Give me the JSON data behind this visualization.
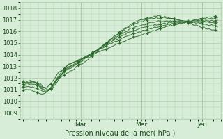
{
  "bg_color": "#d8edd8",
  "grid_color": "#aaccaa",
  "line_color": "#2d6a2d",
  "marker_color": "#2d6a2d",
  "xlabel": "Pression niveau de la mer( hPa )",
  "ylim": [
    1008.5,
    1018.5
  ],
  "yticks": [
    1009,
    1010,
    1011,
    1012,
    1013,
    1014,
    1015,
    1016,
    1017,
    1018
  ],
  "day_labels": [
    "Mar",
    "Mer",
    "Jeu"
  ],
  "day_positions": [
    0.95,
    1.95,
    2.95
  ],
  "xlim": [
    -0.05,
    3.25
  ],
  "x_start": 0.0,
  "x_end": 3.2,
  "n_points": 100
}
